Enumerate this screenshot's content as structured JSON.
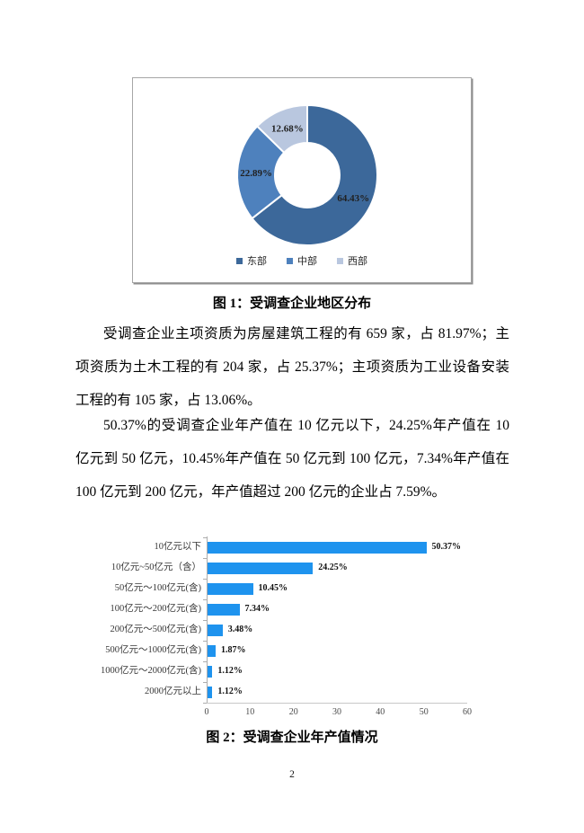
{
  "page": {
    "number": "2",
    "background": "#ffffff"
  },
  "figure1": {
    "caption": "图 1：受调查企业地区分布"
  },
  "figure2": {
    "caption": "图 2：受调查企业年产值情况"
  },
  "paragraphs": {
    "p1": "受调查企业主项资质为房屋建筑工程的有 659 家，占 81.97%；主项资质为土木工程的有 204 家，占 25.37%；主项资质为工业设备安装工程的有 105 家，占 13.06%。",
    "p2": "50.37%的受调查企业年产值在 10 亿元以下，24.25%年产值在 10 亿元到 50 亿元，10.45%年产值在 50 亿元到 100 亿元，7.34%年产值在 100 亿元到 200 亿元，年产值超过 200 亿元的企业占 7.59%。"
  },
  "chart_data": [
    {
      "type": "pie",
      "subtype": "donut",
      "title": "受调查企业地区分布",
      "labels": [
        "东部",
        "中部",
        "西部"
      ],
      "values": [
        64.43,
        22.89,
        12.68
      ],
      "value_labels": [
        "64.43%",
        "22.89%",
        "12.68%"
      ],
      "colors": [
        "#3c689a",
        "#4e81bd",
        "#b9c7df"
      ],
      "legend_position": "bottom",
      "start_angle_deg": 0,
      "direction": "clockwise"
    },
    {
      "type": "bar",
      "orientation": "horizontal",
      "title": "受调查企业年产值情况",
      "categories": [
        "10亿元以下",
        "10亿元~50亿元（含）",
        "50亿元～100亿元(含)",
        "100亿元～200亿元(含)",
        "200亿元～500亿元(含)",
        "500亿元～1000亿元(含)",
        "1000亿元～2000亿元(含)",
        "2000亿元以上"
      ],
      "values": [
        50.37,
        24.25,
        10.45,
        7.34,
        3.48,
        1.87,
        1.12,
        1.12
      ],
      "value_labels": [
        "50.37%",
        "24.25%",
        "10.45%",
        "7.34%",
        "3.48%",
        "1.87%",
        "1.12%",
        "1.12%"
      ],
      "bar_color": "#1e93ee",
      "xlim": [
        0,
        60
      ],
      "x_ticks": [
        0,
        10,
        20,
        30,
        40,
        50,
        60
      ],
      "grid": false,
      "legend": "none"
    }
  ]
}
